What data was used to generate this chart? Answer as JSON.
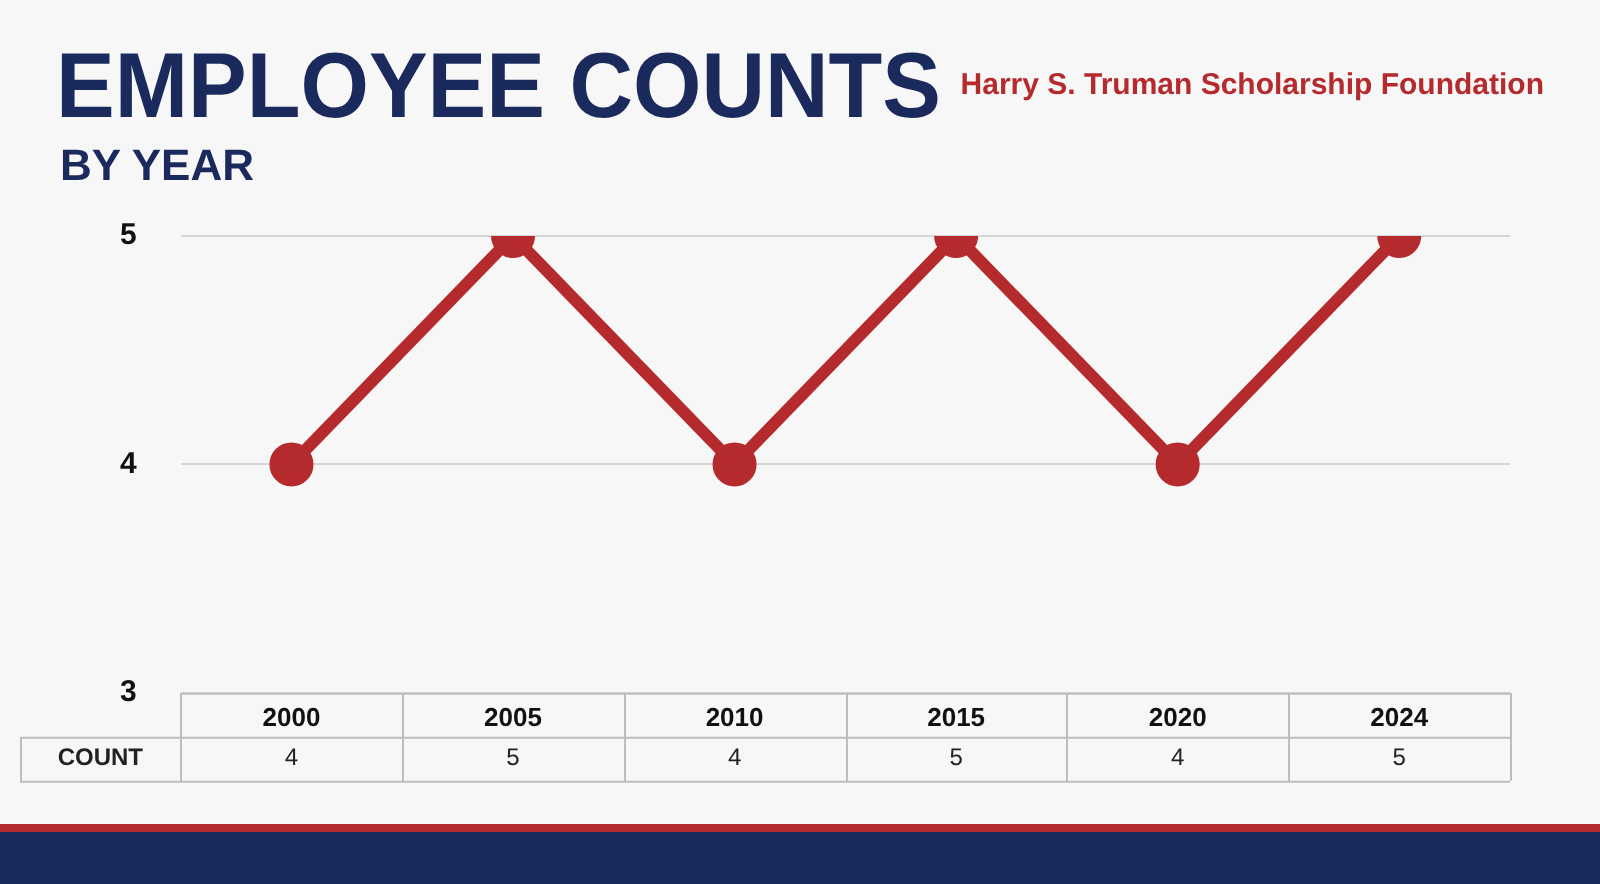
{
  "chart_data": {
    "type": "line",
    "title": "EMPLOYEE COUNTS",
    "subtitle": "BY YEAR",
    "annotations": [
      "Harry S. Truman Scholarship Foundation"
    ],
    "categories": [
      "2000",
      "2005",
      "2010",
      "2015",
      "2020",
      "2024"
    ],
    "series": [
      {
        "name": "COUNT",
        "color": "#b52a2c",
        "values": [
          4,
          5,
          4,
          5,
          4,
          5
        ]
      }
    ],
    "ylim": [
      3,
      5
    ],
    "yticks": [
      3,
      4,
      5
    ],
    "grid": "y",
    "legend": false,
    "marker": "circle",
    "line_style": "solid",
    "data_labels": true
  }
}
